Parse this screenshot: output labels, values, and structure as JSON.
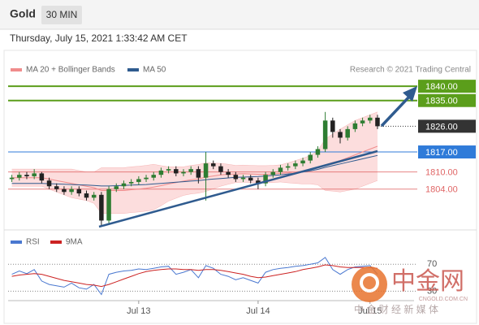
{
  "header": {
    "title": "Gold",
    "timeframe": "30 MIN",
    "date": "Thursday, July 15, 2021 1:33:42 AM CET",
    "credit": "Research © 2021 Trading Central"
  },
  "watermark": {
    "name": "中金网",
    "domain": "CNGOLD.COM.CN",
    "tagline": "中 金 财 经 新 媒 体"
  },
  "chart_data": [
    {
      "type": "candlestick",
      "xlim": [
        -0.5,
        53.9
      ],
      "xticks": [
        {
          "value": 17,
          "label": "Jul 13"
        },
        {
          "value": 33,
          "label": "Jul 14"
        },
        {
          "value": 48,
          "label": "Jul 15"
        }
      ],
      "ylim": [
        1790,
        1848
      ],
      "up_color": "#2e7d32",
      "down_color": "#222222",
      "open": [
        1807.5,
        1808,
        1809,
        1808.5,
        1809.5,
        1807,
        1805,
        1804,
        1803,
        1804,
        1802.5,
        1801,
        1802,
        1793,
        1804,
        1805,
        1806,
        1806.5,
        1807.5,
        1808,
        1809,
        1810.5,
        1811,
        1809.5,
        1810,
        1811,
        1808,
        1813,
        1812,
        1810,
        1809,
        1807.5,
        1808,
        1807,
        1806,
        1809,
        1810,
        1811.5,
        1812,
        1813,
        1814,
        1816,
        1818,
        1828,
        1824,
        1822,
        1825,
        1827,
        1828,
        1829
      ],
      "high": [
        1809,
        1810,
        1810,
        1811,
        1810,
        1808,
        1806,
        1805,
        1805,
        1805,
        1803.5,
        1803,
        1803,
        1805,
        1806,
        1807,
        1807.5,
        1808.5,
        1809,
        1810,
        1811.5,
        1812,
        1812,
        1811,
        1812,
        1812,
        1817,
        1814,
        1813,
        1811,
        1810,
        1809,
        1809,
        1808,
        1810,
        1811,
        1812.5,
        1813,
        1814,
        1815,
        1817,
        1819,
        1831,
        1829,
        1825,
        1826,
        1828,
        1829,
        1830,
        1830
      ],
      "low": [
        1806.5,
        1807,
        1807.5,
        1807.5,
        1806,
        1804,
        1803,
        1802,
        1802,
        1801.5,
        1800,
        1800,
        1791,
        1792,
        1803,
        1804,
        1805,
        1805.5,
        1806.5,
        1807,
        1808,
        1809.5,
        1808.5,
        1808.5,
        1809,
        1806,
        1800,
        1811,
        1809,
        1808,
        1806.5,
        1806.5,
        1806,
        1804,
        1805,
        1808,
        1809,
        1810.5,
        1811,
        1812,
        1813,
        1815,
        1817,
        1822,
        1820,
        1821,
        1824,
        1826,
        1827,
        1825
      ],
      "close": [
        1808,
        1809,
        1808.5,
        1809.5,
        1807,
        1805,
        1804,
        1803,
        1804,
        1802.5,
        1801,
        1802,
        1793,
        1804,
        1805,
        1806,
        1806.5,
        1807.5,
        1808,
        1809,
        1810.5,
        1811,
        1809.5,
        1810,
        1811,
        1808,
        1813,
        1812,
        1810,
        1809,
        1807.5,
        1808,
        1807,
        1806,
        1809,
        1810,
        1811.5,
        1812,
        1813,
        1814,
        1816,
        1818,
        1828,
        1824,
        1822,
        1825,
        1827,
        1828,
        1829,
        1826
      ],
      "bb_upper": [
        1811,
        1811,
        1811,
        1811,
        1811,
        1811,
        1811,
        1811,
        1811,
        1810.5,
        1810,
        1810,
        1811.5,
        1811.5,
        1811.5,
        1811.5,
        1811.8,
        1812,
        1812.3,
        1812.7,
        1812.2,
        1811.8,
        1811.8,
        1811.8,
        1812.3,
        1812.6,
        1813.2,
        1813.1,
        1813,
        1812.7,
        1812.3,
        1812.4,
        1812.3,
        1812.2,
        1812.2,
        1812.3,
        1812.5,
        1813.2,
        1814,
        1814.8,
        1815.8,
        1817.5,
        1821.5,
        1823.3,
        1825,
        1826.5,
        1828,
        1829,
        1830,
        1831
      ],
      "bb_lower": [
        1805,
        1805,
        1805,
        1805,
        1805,
        1804,
        1803,
        1802,
        1801,
        1800.5,
        1800,
        1799,
        1795.5,
        1795.5,
        1795.5,
        1795.5,
        1795.8,
        1796,
        1796.3,
        1796.7,
        1798.2,
        1799.8,
        1800.8,
        1801.8,
        1802.3,
        1802.6,
        1803.2,
        1804.1,
        1805,
        1805.7,
        1806.3,
        1806.4,
        1806.3,
        1806.2,
        1806.2,
        1806.3,
        1806.5,
        1806.2,
        1806,
        1805.8,
        1805.8,
        1805.5,
        1803.5,
        1803.3,
        1803,
        1803.5,
        1804,
        1805,
        1806,
        1807
      ],
      "band_color": "#fbd5d5",
      "series": [
        {
          "name": "MA 20 + Bollinger Bands",
          "color": "#f08c8c",
          "values": [
            1808,
            1808,
            1808,
            1808,
            1808,
            1807.5,
            1807,
            1806.5,
            1806,
            1805.5,
            1805,
            1804.5,
            1803.5,
            1803.5,
            1803.5,
            1803.5,
            1803.8,
            1804,
            1804.3,
            1804.7,
            1805.2,
            1805.8,
            1806.3,
            1806.8,
            1807.3,
            1807.6,
            1808.2,
            1808.6,
            1809,
            1809.2,
            1809.3,
            1809.4,
            1809.3,
            1809.2,
            1809.2,
            1809.3,
            1809.5,
            1809.7,
            1810,
            1810.3,
            1810.8,
            1811.5,
            1812.5,
            1813.3,
            1814,
            1815,
            1816,
            1817,
            1818,
            1819
          ]
        },
        {
          "name": "MA 50",
          "color": "#2f5b8f",
          "values": [
            1806,
            1806,
            1806,
            1806,
            1806,
            1805.9,
            1805.8,
            1805.7,
            1805.6,
            1805.5,
            1805.4,
            1805.3,
            1805.1,
            1805.1,
            1805.2,
            1805.3,
            1805.4,
            1805.5,
            1805.6,
            1805.8,
            1806,
            1806.2,
            1806.4,
            1806.6,
            1806.8,
            1807,
            1807.3,
            1807.5,
            1807.7,
            1807.9,
            1808.1,
            1808.2,
            1808.3,
            1808.4,
            1808.6,
            1808.8,
            1809,
            1809.3,
            1809.6,
            1810,
            1810.4,
            1810.9,
            1811.6,
            1812.2,
            1812.8,
            1813.4,
            1814,
            1814.6,
            1815.2,
            1815.8
          ]
        }
      ],
      "levels": [
        {
          "value": 1840,
          "label": "1840.00",
          "color": "#5b9e1b",
          "style": "box"
        },
        {
          "value": 1835,
          "label": "1835.00",
          "color": "#5b9e1b",
          "style": "box"
        },
        {
          "value": 1826,
          "label": "1826.00",
          "color": "#333333",
          "style": "box"
        },
        {
          "value": 1817,
          "label": "1817.00",
          "color": "#2f7bd9",
          "style": "box"
        },
        {
          "value": 1810,
          "label": "1810.00",
          "color": "#e06666",
          "style": "text"
        },
        {
          "value": 1804,
          "label": "1804.00",
          "color": "#e06666",
          "style": "text"
        }
      ]
    },
    {
      "type": "line",
      "xlim": [
        -0.5,
        53.9
      ],
      "ylim": [
        16,
        110
      ],
      "yticks": [
        30,
        70
      ],
      "series": [
        {
          "name": "RSI",
          "color": "#4a78d0",
          "values": [
            55,
            60,
            56,
            62,
            45,
            40,
            38,
            36,
            42,
            35,
            33,
            40,
            25,
            55,
            58,
            60,
            61,
            63,
            62,
            64,
            66,
            67,
            55,
            58,
            62,
            50,
            68,
            64,
            55,
            52,
            47,
            50,
            46,
            42,
            58,
            62,
            64,
            65,
            67,
            68,
            70,
            72,
            80,
            62,
            55,
            62,
            66,
            67,
            68,
            55
          ]
        },
        {
          "name": "9MA",
          "color": "#cc2222",
          "values": [
            52,
            54,
            55,
            56,
            55,
            52,
            49,
            46,
            44,
            42,
            40,
            39,
            37,
            40,
            44,
            48,
            52,
            56,
            59,
            61,
            62,
            63,
            63,
            62,
            62,
            61,
            62,
            62,
            61,
            59,
            57,
            55,
            52,
            50,
            51,
            53,
            55,
            57,
            59,
            62,
            64,
            66,
            69,
            68,
            66,
            65,
            65,
            65,
            65,
            64
          ]
        }
      ]
    }
  ]
}
